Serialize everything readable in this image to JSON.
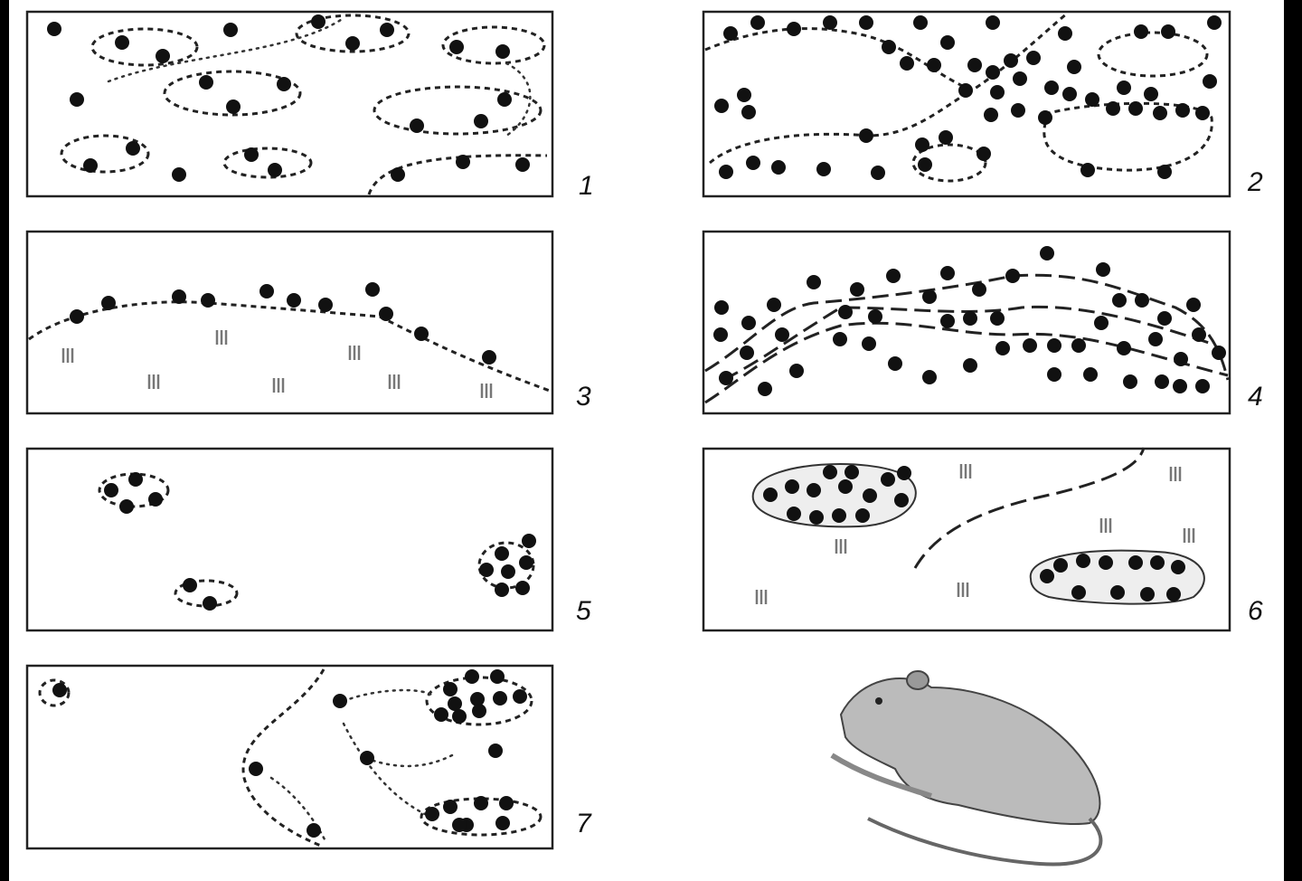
{
  "panels": [
    {
      "label": "1"
    },
    {
      "label": "2"
    },
    {
      "label": "3"
    },
    {
      "label": "4"
    },
    {
      "label": "5"
    },
    {
      "label": "6"
    },
    {
      "label": "7"
    }
  ]
}
